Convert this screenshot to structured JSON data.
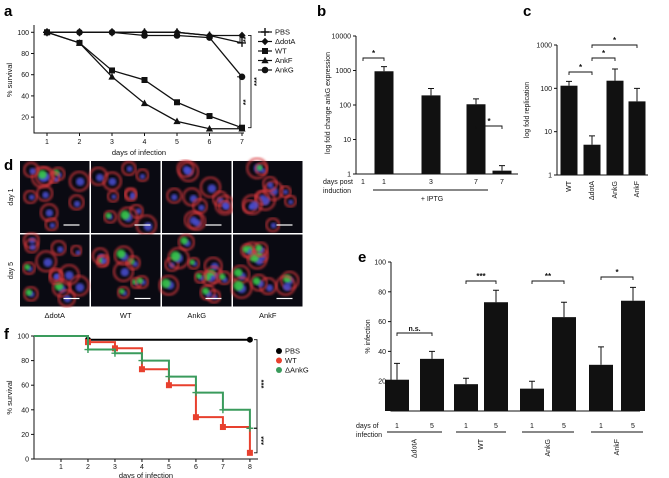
{
  "panel_labels": {
    "a": "a",
    "b": "b",
    "c": "c",
    "d": "d",
    "e": "e",
    "f": "f"
  },
  "chart_data": [
    {
      "panel": "a",
      "type": "line",
      "ylabel": "% survival",
      "xlabel": "days of infection",
      "x": [
        1,
        2,
        3,
        4,
        5,
        6,
        7
      ],
      "ylim": [
        5,
        105
      ],
      "yticks": [
        20,
        40,
        60,
        80,
        100
      ],
      "xticks": [
        1,
        2,
        3,
        4,
        5,
        6,
        7
      ],
      "series": [
        {
          "name": "PBS",
          "marker": "plus",
          "values": [
            100,
            100,
            100,
            100,
            100,
            97,
            90
          ]
        },
        {
          "name": "ΔdotA",
          "marker": "diamond",
          "values": [
            100,
            100,
            100,
            100,
            100,
            97,
            97
          ]
        },
        {
          "name": "WT",
          "marker": "square",
          "values": [
            100,
            90,
            64,
            55,
            34,
            21,
            10
          ]
        },
        {
          "name": "AnkF",
          "marker": "triangle",
          "values": [
            100,
            90,
            58,
            33,
            16,
            9,
            9
          ]
        },
        {
          "name": "AnkG",
          "marker": "circle",
          "values": [
            100,
            100,
            100,
            97,
            97,
            95,
            58
          ]
        }
      ],
      "significance": [
        "**",
        "***",
        "**"
      ]
    },
    {
      "panel": "b",
      "type": "bar",
      "log_scale": true,
      "ylabel": "log fold change ankG expression",
      "categories": [
        "1",
        "1",
        "3",
        "7",
        "7"
      ],
      "values": [
        1,
        950,
        190,
        105,
        1.25
      ],
      "errors": [
        0,
        350,
        110,
        45,
        0.5
      ],
      "ylim": [
        1,
        10000
      ],
      "yticks": [
        "1",
        "10",
        "100",
        "1000",
        "10000"
      ],
      "xlabel_row": "days post induction",
      "group_label": "+ IPTG",
      "significance": [
        "*",
        "*"
      ]
    },
    {
      "panel": "c",
      "type": "bar",
      "log_scale": true,
      "ylabel": "log fold replication",
      "categories": [
        "WT",
        "ΔdotA",
        "AnkG",
        "AnkF"
      ],
      "values": [
        115,
        5,
        150,
        50
      ],
      "errors": [
        30,
        3,
        130,
        50
      ],
      "ylim": [
        1,
        1000
      ],
      "yticks": [
        "1",
        "10",
        "100",
        "1000"
      ],
      "significance": [
        "*",
        "*",
        "*"
      ]
    },
    {
      "panel": "e",
      "type": "bar",
      "ylabel": "% infection",
      "groups": [
        "ΔdotA",
        "WT",
        "AnkG",
        "AnkF"
      ],
      "days": [
        "1",
        "5"
      ],
      "values": [
        [
          21,
          35
        ],
        [
          18,
          73
        ],
        [
          15,
          63
        ],
        [
          31,
          74
        ]
      ],
      "errors": [
        [
          11,
          5
        ],
        [
          4,
          8
        ],
        [
          5,
          10
        ],
        [
          12,
          9
        ]
      ],
      "ylim": [
        0,
        100
      ],
      "yticks": [
        20,
        40,
        60,
        80,
        100
      ],
      "xlabel_row": "days of infection",
      "significance": [
        "n.s.",
        "***",
        "**",
        "*"
      ]
    },
    {
      "panel": "f",
      "type": "line",
      "step": true,
      "ylabel": "% survival",
      "xlabel": "days of infection",
      "xlim": [
        0,
        8.3
      ],
      "xticks": [
        1,
        2,
        3,
        4,
        5,
        6,
        7,
        8
      ],
      "ylim": [
        0,
        100
      ],
      "yticks": [
        0,
        20,
        40,
        60,
        80,
        100
      ],
      "series": [
        {
          "name": "PBS",
          "color": "#000000",
          "x": [
            0,
            2,
            8
          ],
          "y": [
            100,
            97,
            97
          ],
          "markers": [
            [
              2,
              97
            ],
            [
              8,
              97
            ]
          ]
        },
        {
          "name": "WT",
          "color": "#e8402e",
          "x": [
            0,
            2,
            3,
            4,
            5,
            6,
            7,
            8
          ],
          "y": [
            100,
            95,
            90,
            73,
            60,
            34,
            26,
            5
          ],
          "markers": [
            [
              2,
              95
            ],
            [
              3,
              90
            ],
            [
              4,
              73
            ],
            [
              5,
              60
            ],
            [
              6,
              34
            ],
            [
              7,
              26
            ],
            [
              8,
              5
            ]
          ]
        },
        {
          "name": "ΔAnkG",
          "color": "#3a9b5c",
          "x": [
            0,
            2,
            3,
            4,
            5,
            6,
            7,
            8
          ],
          "y": [
            100,
            89,
            86,
            80,
            67,
            54,
            40,
            25
          ],
          "markers": [
            [
              2,
              89
            ],
            [
              3,
              86
            ],
            [
              4,
              80
            ],
            [
              5,
              67
            ],
            [
              6,
              54
            ],
            [
              7,
              40
            ],
            [
              8,
              25
            ]
          ]
        }
      ],
      "significance": [
        "***",
        "***"
      ]
    }
  ],
  "panel_d": {
    "rows": [
      "day 1",
      "day 5"
    ],
    "columns": [
      "ΔdotA",
      "WT",
      "AnkG",
      "AnkF"
    ]
  },
  "colors": {
    "red": "#e8402e",
    "green": "#3a9b5c",
    "black": "#000000"
  }
}
